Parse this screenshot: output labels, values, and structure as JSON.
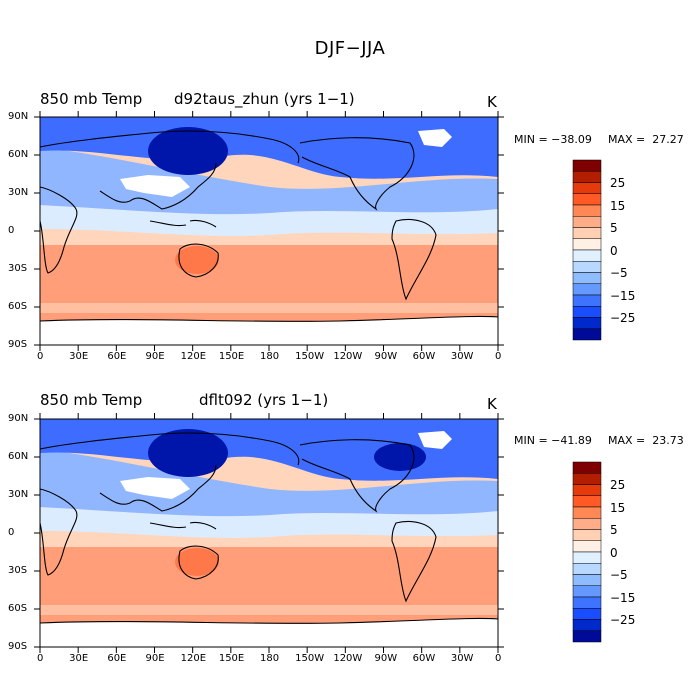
{
  "title": "DJF−JJA",
  "panels": [
    {
      "variable": "850 mb Temp",
      "case": "d92taus_zhun (yrs 1−1)",
      "units": "K",
      "min_label": "MIN = −38.09",
      "max_label": "MAX =  27.27"
    },
    {
      "variable": "850 mb Temp",
      "case": "dflt092 (yrs 1−1)",
      "units": "K",
      "min_label": "MIN = −41.89",
      "max_label": "MAX =  23.73"
    }
  ],
  "axes": {
    "lat_labels": [
      "90N",
      "60N",
      "30N",
      "0",
      "30S",
      "60S",
      "90S"
    ],
    "lon_labels": [
      "0",
      "30E",
      "60E",
      "90E",
      "120E",
      "150E",
      "180",
      "150W",
      "120W",
      "90W",
      "60W",
      "30W",
      "0"
    ]
  },
  "colorbar": {
    "labels": [
      "25",
      "15",
      "5",
      "0",
      "−5",
      "−15",
      "−25"
    ],
    "colors": [
      "#7f0000",
      "#b21f00",
      "#e53a0c",
      "#ff5a26",
      "#ff8855",
      "#ffad88",
      "#ffd0b3",
      "#fff0e6",
      "#e0f0ff",
      "#b8d8ff",
      "#8fbcff",
      "#6699ff",
      "#3d73ff",
      "#1a4dff",
      "#0029cc",
      "#000a99"
    ]
  },
  "map_colors": {
    "tropical_warm": "#ffd5bb",
    "south_warm": "#ff9e78",
    "south_hot": "#ff7849",
    "equator_light": "#dcecff",
    "mid_blue": "#8fb6ff",
    "deep_blue": "#3d6cff",
    "darkest_blue": "#0015aa",
    "missing": "#ffffff",
    "coast": "#000000"
  }
}
